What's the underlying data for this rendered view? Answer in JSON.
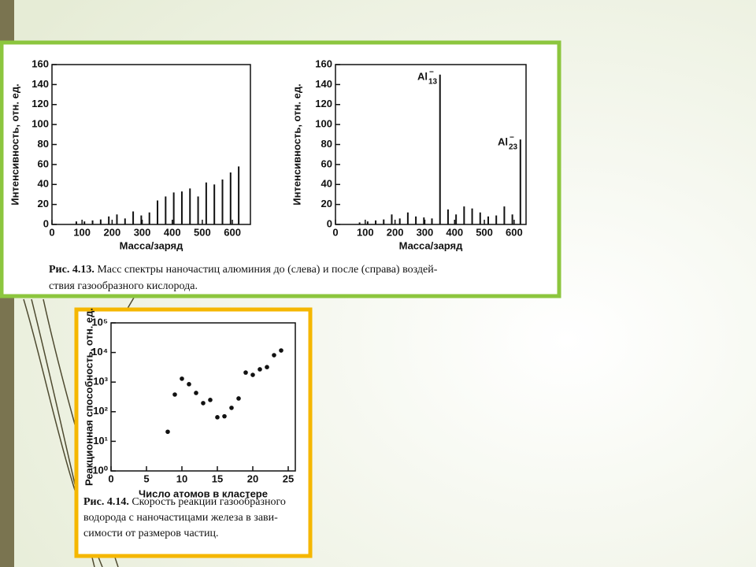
{
  "chart_data": [
    {
      "type": "bar",
      "xlabel": "Масса/заряд",
      "ylabel": "Интенсивность, отн. ед.",
      "x": [
        81,
        108,
        135,
        162,
        189,
        216,
        243,
        270,
        297,
        324,
        351,
        378,
        405,
        432,
        459,
        486,
        513,
        540,
        567,
        594,
        621
      ],
      "values": [
        3,
        3,
        4,
        5,
        8,
        10,
        6,
        13,
        9,
        12,
        24,
        28,
        32,
        33,
        36,
        28,
        42,
        40,
        45,
        52,
        58
      ],
      "color": "#111111",
      "xlim": [
        0,
        660
      ],
      "xticks": [
        0,
        100,
        200,
        300,
        400,
        500,
        600
      ],
      "ylim": [
        0,
        160
      ],
      "yticks": [
        0,
        20,
        40,
        60,
        80,
        100,
        120,
        140,
        160
      ]
    },
    {
      "type": "bar",
      "xlabel": "Масса/заряд",
      "ylabel": "Интенсивность, отн. ед.",
      "x": [
        81,
        108,
        135,
        162,
        189,
        216,
        243,
        270,
        297,
        324,
        351,
        378,
        405,
        432,
        459,
        486,
        513,
        540,
        567,
        594,
        621
      ],
      "values": [
        2,
        3,
        4,
        5,
        10,
        6,
        12,
        8,
        7,
        6,
        150,
        15,
        10,
        18,
        16,
        12,
        8,
        9,
        18,
        10,
        85
      ],
      "color": "#111111",
      "annotations": [
        {
          "text": "Al",
          "sub": "13",
          "sup": "−"
        },
        {
          "text": "Al",
          "sub": "23",
          "sup": "−"
        }
      ],
      "xlim": [
        0,
        640
      ],
      "xticks": [
        0,
        100,
        200,
        300,
        400,
        500,
        600
      ],
      "ylim": [
        0,
        160
      ],
      "yticks": [
        0,
        20,
        40,
        60,
        80,
        100,
        120,
        140,
        160
      ]
    },
    {
      "type": "scatter",
      "xlabel": "Число атомов в кластере",
      "ylabel": "Реакционная способность, отн. ед.",
      "x": [
        8,
        9,
        10,
        11,
        12,
        13,
        14,
        15,
        16,
        17,
        18,
        19,
        20,
        21,
        22,
        23,
        24
      ],
      "values": [
        21,
        380,
        1300,
        850,
        430,
        195,
        250,
        65,
        70,
        135,
        280,
        2100,
        1750,
        2700,
        3200,
        8100,
        11700
      ],
      "color": "#111111",
      "xlim": [
        0,
        26
      ],
      "xticks": [
        0,
        5,
        10,
        15,
        20,
        25
      ],
      "ylim": [
        1,
        100000
      ],
      "log_y": true,
      "yticks": [
        {
          "value": 1,
          "label": "10⁰"
        },
        {
          "value": 10,
          "label": "10¹"
        },
        {
          "value": 100,
          "label": "10²"
        },
        {
          "value": 1000,
          "label": "10³"
        },
        {
          "value": 10000,
          "label": "10⁴"
        },
        {
          "value": 100000,
          "label": "10⁵"
        }
      ]
    }
  ],
  "figures": [
    {
      "label": "Рис. 4.13.",
      "lines": [
        "Масс спектры наночастиц алюминия до (слева) и после (справа) воздей-",
        "ствия газообразного кислорода."
      ]
    },
    {
      "label": "Рис. 4.14.",
      "lines": [
        "Скорость реакции газообразного",
        "водорода с наночастицами железа в зави-",
        "симости от размеров частиц."
      ]
    }
  ]
}
